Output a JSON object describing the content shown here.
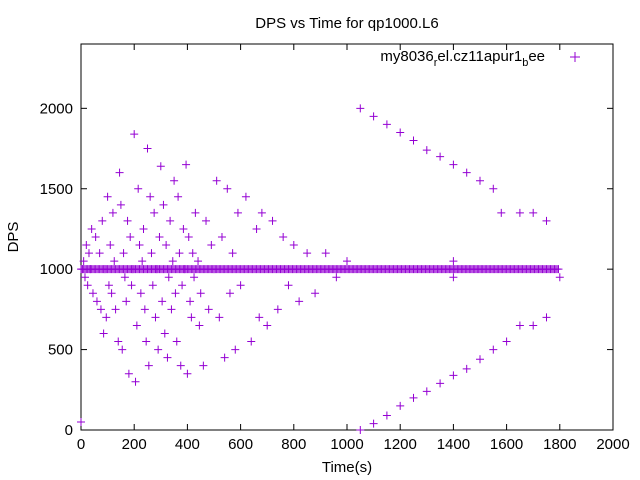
{
  "chart_data": {
    "type": "scatter",
    "title": "DPS vs Time for qp1000.L6",
    "xlabel": "Time(s)",
    "ylabel": "DPS",
    "xlim": [
      0,
      2000
    ],
    "ylim": [
      0,
      2400
    ],
    "xticks": [
      0,
      200,
      400,
      600,
      800,
      1000,
      1200,
      1400,
      1600,
      1800,
      2000
    ],
    "yticks": [
      0,
      500,
      1000,
      1500,
      2000
    ],
    "grid": false,
    "legend_position": "top-right",
    "marker_color": "#9400d3",
    "legend": {
      "main": "my8036",
      "sub1": "r",
      "mid": "el.cz11apur1",
      "sub2": "b",
      "end": "ee"
    },
    "series": [
      {
        "name": "my8036_rel.cz11apur1_bee",
        "marker": "plus",
        "baseline": {
          "y": 1000,
          "x_start": 0,
          "x_end": 1795,
          "x_step": 5
        },
        "points": [
          [
            0,
            50
          ],
          [
            5,
            1000
          ],
          [
            10,
            1050
          ],
          [
            15,
            950
          ],
          [
            20,
            1150
          ],
          [
            25,
            900
          ],
          [
            30,
            1100
          ],
          [
            35,
            1000
          ],
          [
            40,
            1250
          ],
          [
            45,
            850
          ],
          [
            55,
            1200
          ],
          [
            60,
            800
          ],
          [
            70,
            1100
          ],
          [
            75,
            750
          ],
          [
            80,
            1300
          ],
          [
            85,
            600
          ],
          [
            90,
            1000
          ],
          [
            95,
            700
          ],
          [
            100,
            1450
          ],
          [
            105,
            900
          ],
          [
            110,
            1150
          ],
          [
            115,
            850
          ],
          [
            120,
            1350
          ],
          [
            125,
            1050
          ],
          [
            130,
            750
          ],
          [
            140,
            550
          ],
          [
            145,
            1600
          ],
          [
            150,
            1400
          ],
          [
            155,
            500
          ],
          [
            160,
            1100
          ],
          [
            165,
            950
          ],
          [
            170,
            800
          ],
          [
            175,
            1300
          ],
          [
            180,
            350
          ],
          [
            185,
            1200
          ],
          [
            190,
            900
          ],
          [
            195,
            1000
          ],
          [
            200,
            1840
          ],
          [
            205,
            300
          ],
          [
            210,
            650
          ],
          [
            215,
            1500
          ],
          [
            220,
            1150
          ],
          [
            225,
            850
          ],
          [
            230,
            1050
          ],
          [
            235,
            1250
          ],
          [
            240,
            750
          ],
          [
            245,
            550
          ],
          [
            250,
            1750
          ],
          [
            255,
            400
          ],
          [
            260,
            1450
          ],
          [
            265,
            1100
          ],
          [
            270,
            900
          ],
          [
            275,
            1350
          ],
          [
            280,
            700
          ],
          [
            285,
            1000
          ],
          [
            290,
            500
          ],
          [
            295,
            1200
          ],
          [
            300,
            1640
          ],
          [
            305,
            800
          ],
          [
            310,
            1400
          ],
          [
            315,
            600
          ],
          [
            320,
            1150
          ],
          [
            325,
            450
          ],
          [
            330,
            950
          ],
          [
            335,
            1300
          ],
          [
            340,
            750
          ],
          [
            345,
            1050
          ],
          [
            350,
            1550
          ],
          [
            355,
            850
          ],
          [
            360,
            550
          ],
          [
            365,
            1450
          ],
          [
            370,
            1100
          ],
          [
            375,
            400
          ],
          [
            380,
            900
          ],
          [
            385,
            1250
          ],
          [
            390,
            1000
          ],
          [
            395,
            1650
          ],
          [
            400,
            350
          ],
          [
            405,
            1200
          ],
          [
            410,
            800
          ],
          [
            415,
            700
          ],
          [
            420,
            1100
          ],
          [
            425,
            950
          ],
          [
            430,
            1350
          ],
          [
            440,
            1050
          ],
          [
            445,
            650
          ],
          [
            450,
            850
          ],
          [
            460,
            400
          ],
          [
            470,
            1300
          ],
          [
            480,
            750
          ],
          [
            490,
            1150
          ],
          [
            500,
            1000
          ],
          [
            510,
            1550
          ],
          [
            520,
            700
          ],
          [
            530,
            1200
          ],
          [
            540,
            450
          ],
          [
            550,
            1500
          ],
          [
            560,
            850
          ],
          [
            570,
            1100
          ],
          [
            580,
            500
          ],
          [
            590,
            1350
          ],
          [
            600,
            900
          ],
          [
            620,
            1450
          ],
          [
            640,
            550
          ],
          [
            660,
            1250
          ],
          [
            670,
            700
          ],
          [
            680,
            1350
          ],
          [
            700,
            650
          ],
          [
            720,
            1300
          ],
          [
            740,
            750
          ],
          [
            760,
            1200
          ],
          [
            780,
            900
          ],
          [
            800,
            1150
          ],
          [
            820,
            800
          ],
          [
            850,
            1100
          ],
          [
            880,
            850
          ],
          [
            920,
            1100
          ],
          [
            960,
            950
          ],
          [
            1000,
            1050
          ],
          [
            1050,
            2000
          ],
          [
            1100,
            1950
          ],
          [
            1150,
            1900
          ],
          [
            1200,
            1850
          ],
          [
            1250,
            1800
          ],
          [
            1300,
            1740
          ],
          [
            1350,
            1700
          ],
          [
            1400,
            1650
          ],
          [
            1450,
            1600
          ],
          [
            1500,
            1550
          ],
          [
            1550,
            1500
          ],
          [
            1580,
            1350
          ],
          [
            1650,
            1350
          ],
          [
            1700,
            1350
          ],
          [
            1750,
            1300
          ],
          [
            1800,
            950
          ],
          [
            1050,
            0
          ],
          [
            1100,
            40
          ],
          [
            1150,
            90
          ],
          [
            1200,
            150
          ],
          [
            1250,
            200
          ],
          [
            1300,
            240
          ],
          [
            1350,
            290
          ],
          [
            1400,
            340
          ],
          [
            1450,
            380
          ],
          [
            1500,
            440
          ],
          [
            1550,
            500
          ],
          [
            1600,
            550
          ],
          [
            1650,
            650
          ],
          [
            1700,
            650
          ],
          [
            1750,
            700
          ],
          [
            1400,
            1050
          ],
          [
            1400,
            950
          ]
        ]
      }
    ]
  }
}
